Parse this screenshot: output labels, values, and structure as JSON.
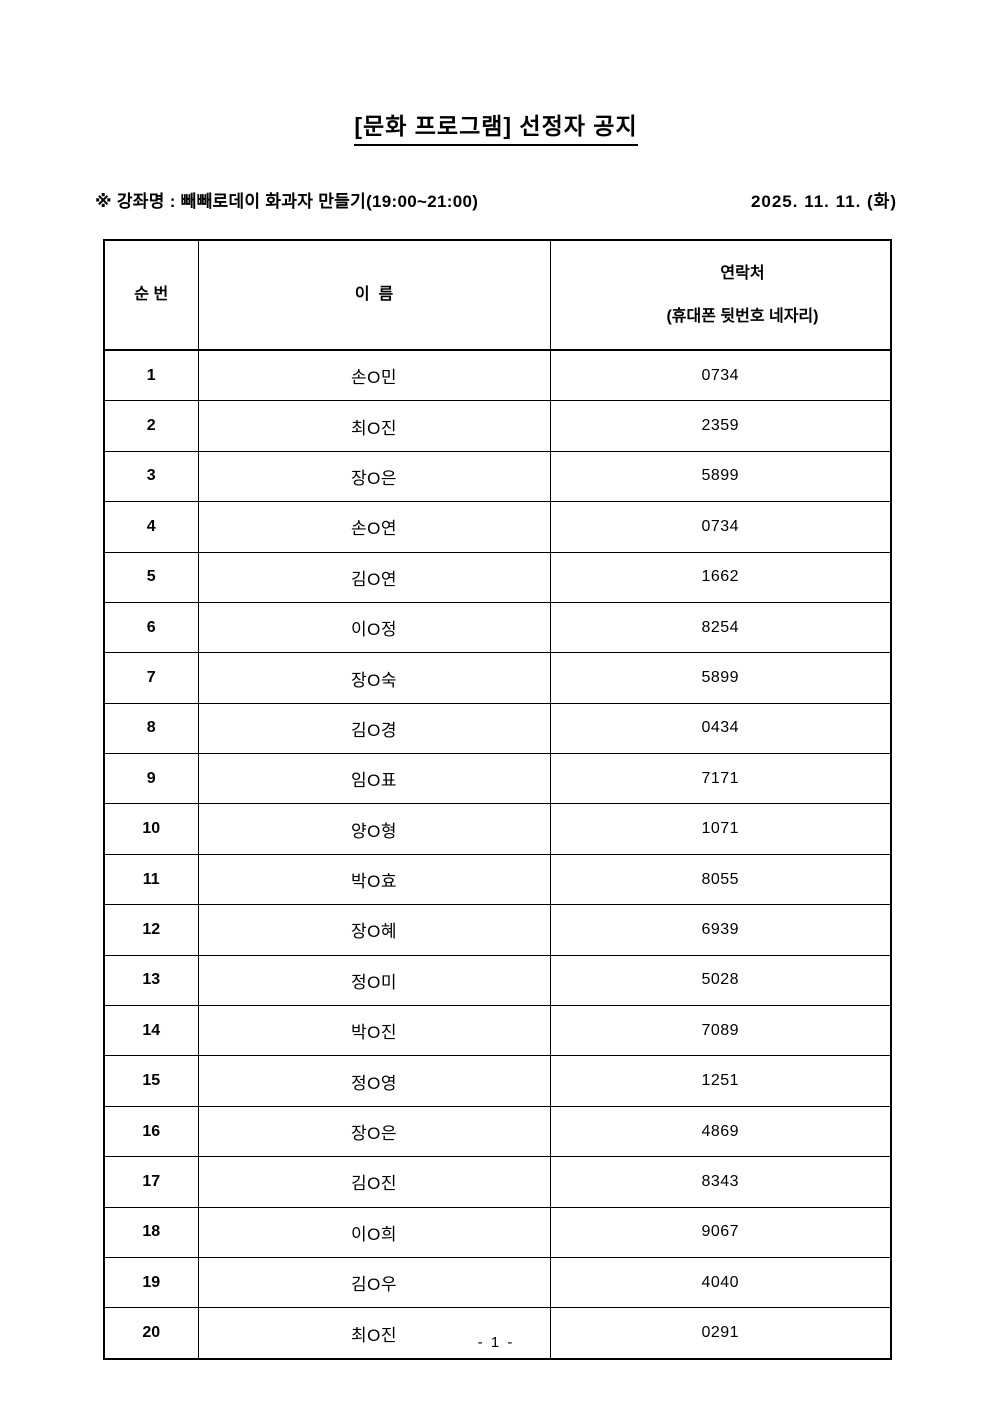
{
  "page": {
    "title": "[문화 프로그램] 선정자 공지",
    "footer_page_number": "- 1 -"
  },
  "course_info": {
    "label": "※ 강좌명 : 빼빼로데이 화과자 만들기(19:00~21:00)",
    "date": "2025. 11. 11. (화)"
  },
  "table": {
    "headers": {
      "no": "순 번",
      "name": "이  름",
      "contact_line1": "연락처",
      "contact_line2": "(휴대폰 뒷번호 네자리)"
    },
    "rows": [
      {
        "no": "1",
        "name": "손O민",
        "contact": "0734"
      },
      {
        "no": "2",
        "name": "최O진",
        "contact": "2359"
      },
      {
        "no": "3",
        "name": "장O은",
        "contact": "5899"
      },
      {
        "no": "4",
        "name": "손O연",
        "contact": "0734"
      },
      {
        "no": "5",
        "name": "김O연",
        "contact": "1662"
      },
      {
        "no": "6",
        "name": "이O정",
        "contact": "8254"
      },
      {
        "no": "7",
        "name": "장O숙",
        "contact": "5899"
      },
      {
        "no": "8",
        "name": "김O경",
        "contact": "0434"
      },
      {
        "no": "9",
        "name": "임O표",
        "contact": "7171"
      },
      {
        "no": "10",
        "name": "양O형",
        "contact": "1071"
      },
      {
        "no": "11",
        "name": "박O효",
        "contact": "8055"
      },
      {
        "no": "12",
        "name": "장O혜",
        "contact": "6939"
      },
      {
        "no": "13",
        "name": "정O미",
        "contact": "5028"
      },
      {
        "no": "14",
        "name": "박O진",
        "contact": "7089"
      },
      {
        "no": "15",
        "name": "정O영",
        "contact": "1251"
      },
      {
        "no": "16",
        "name": "장O은",
        "contact": "4869"
      },
      {
        "no": "17",
        "name": "김O진",
        "contact": "8343"
      },
      {
        "no": "18",
        "name": "이O희",
        "contact": "9067"
      },
      {
        "no": "19",
        "name": "김O우",
        "contact": "4040"
      },
      {
        "no": "20",
        "name": "최O진",
        "contact": "0291"
      }
    ]
  },
  "colors": {
    "text": "#000000",
    "background": "#ffffff",
    "border": "#000000"
  }
}
